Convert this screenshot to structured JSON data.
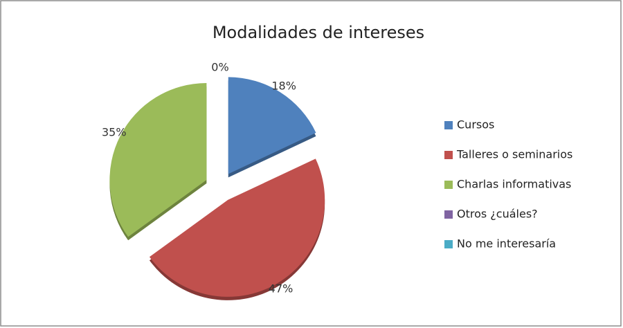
{
  "chart_data": {
    "type": "pie",
    "title": "Modalidades de intereses",
    "categories": [
      "Cursos",
      "Talleres o seminarios",
      "Charlas informativas",
      "Otros ¿cuáles?",
      "No me interesaría"
    ],
    "values": [
      18,
      47,
      35,
      0,
      0
    ],
    "value_labels": [
      "18%",
      "47%",
      "35%",
      "0%",
      null
    ],
    "colors": [
      "#4f81bd",
      "#c0504d",
      "#9bbb59",
      "#8064a2",
      "#4bacc6"
    ],
    "legend": "right"
  }
}
